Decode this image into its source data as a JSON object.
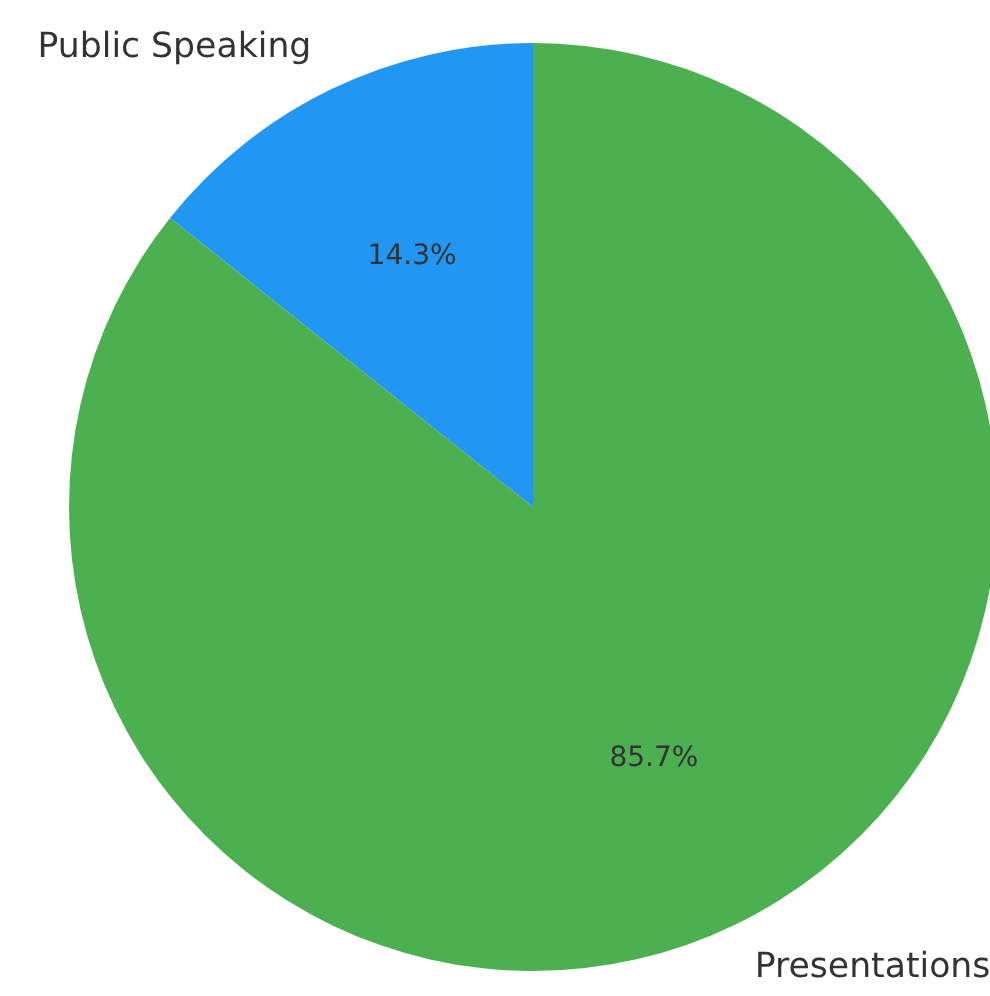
{
  "chart_data": {
    "type": "pie",
    "categories": [
      "Public Speaking",
      "Presentations"
    ],
    "values": [
      14.3,
      85.7
    ],
    "colors": [
      "#2196f3",
      "#4caf50"
    ],
    "value_labels": [
      "14.3%",
      "85.7%"
    ]
  }
}
